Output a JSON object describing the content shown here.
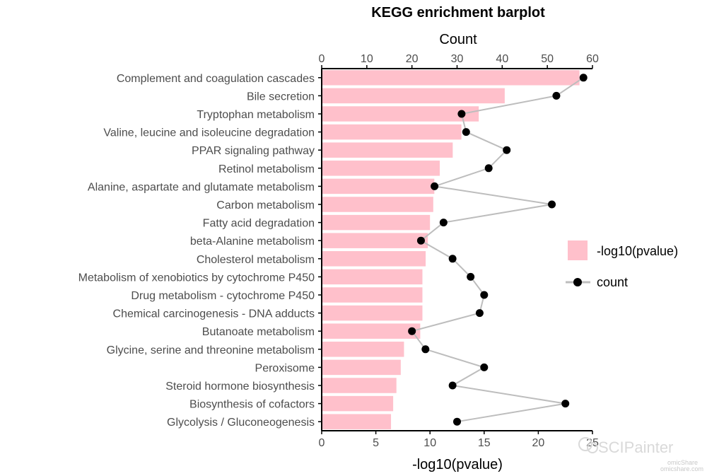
{
  "chart_data": {
    "type": "bar",
    "orientation": "horizontal",
    "title": "KEGG enrichment barplot",
    "xlabel_bottom": "-log10(pvalue)",
    "xlabel_top": "Count",
    "xlim_bottom": [
      0,
      25
    ],
    "xlim_top": [
      0,
      60
    ],
    "ticks_bottom": [
      "0",
      "5",
      "10",
      "15",
      "20",
      "25"
    ],
    "ticks_top": [
      "0",
      "10",
      "20",
      "30",
      "40",
      "50",
      "60"
    ],
    "categories": [
      "Complement and coagulation cascades",
      "Bile secretion",
      "Tryptophan metabolism",
      "Valine, leucine and isoleucine degradation",
      "PPAR signaling pathway",
      "Retinol metabolism",
      "Alanine, aspartate and glutamate metabolism",
      "Carbon metabolism",
      "Fatty acid degradation",
      "beta-Alanine metabolism",
      "Cholesterol metabolism",
      "Metabolism of xenobiotics by cytochrome P450",
      "Drug metabolism - cytochrome P450",
      "Chemical carcinogenesis - DNA adducts",
      "Butanoate metabolism",
      "Glycine, serine and threonine metabolism",
      "Peroxisome",
      "Steroid hormone biosynthesis",
      "Biosynthesis of cofactors",
      "Glycolysis / Gluconeogenesis"
    ],
    "series": [
      {
        "name": "-log10(pvalue)",
        "kind": "bar",
        "axis": "bottom",
        "color": "#FFC0CB",
        "values": [
          23.8,
          16.9,
          14.5,
          12.9,
          12.1,
          10.9,
          10.4,
          10.3,
          10.0,
          9.8,
          9.6,
          9.3,
          9.3,
          9.3,
          9.1,
          7.6,
          7.3,
          6.9,
          6.6,
          6.4
        ]
      },
      {
        "name": "count",
        "kind": "line-point",
        "axis": "top",
        "color": "#000000",
        "line_color": "#bdbdbd",
        "values": [
          58,
          52,
          31,
          32,
          41,
          37,
          25,
          51,
          27,
          22,
          29,
          33,
          36,
          35,
          20,
          23,
          36,
          29,
          54,
          30
        ]
      }
    ],
    "legend": {
      "position": "right",
      "entries": [
        "-log10(pvalue)",
        "count"
      ]
    }
  },
  "watermark": {
    "main": "SCIPainter",
    "small1": "omicShare",
    "small2": "omicshare.com"
  }
}
